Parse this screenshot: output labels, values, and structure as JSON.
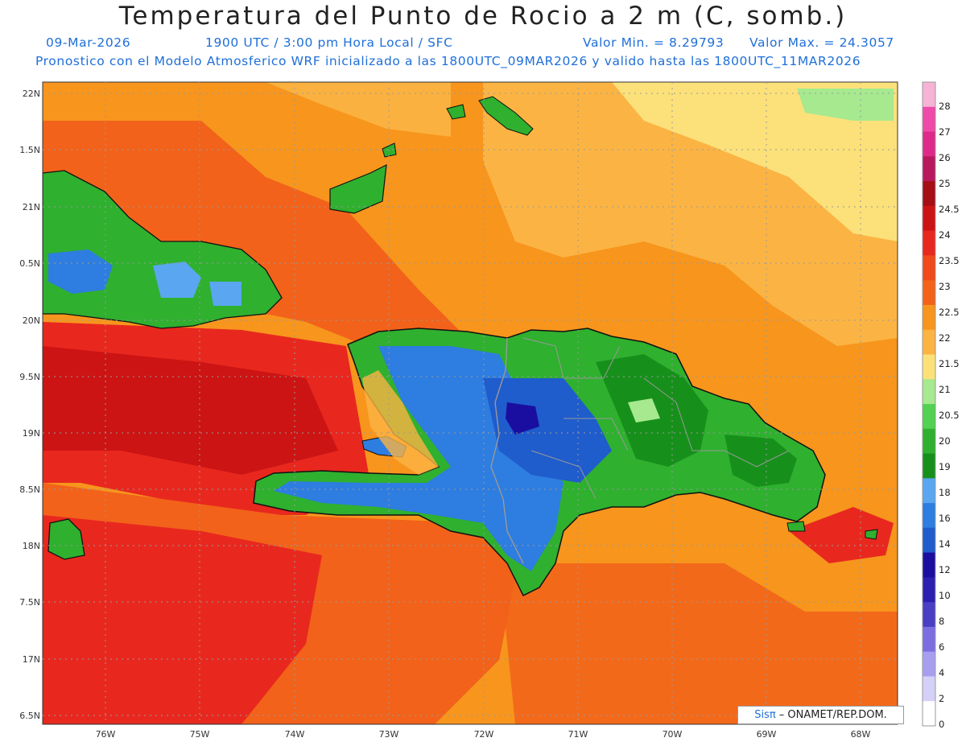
{
  "header": {
    "title": "Temperatura del Punto de Rocio a 2 m (C, somb.)",
    "date": "09-Mar-2026",
    "time": "1900 UTC / 3:00 pm Hora Local / SFC",
    "valmin": "Valor Min. = 8.29793",
    "valmax": "Valor Max. = 24.3057",
    "model_line": "Pronostico con el Modelo Atmosferico WRF inicializado a las 1800UTC_09MAR2026 y valido hasta las  1800UTC_11MAR2026"
  },
  "axes": {
    "lat_labels": [
      "22N",
      "1.5N",
      "21N",
      "0.5N",
      "20N",
      "9.5N",
      "19N",
      "8.5N",
      "18N",
      "7.5N",
      "17N",
      "6.5N"
    ],
    "lon_labels": [
      "76W",
      "75W",
      "74W",
      "73W",
      "72W",
      "71W",
      "70W",
      "69W",
      "68W"
    ]
  },
  "colorbar": {
    "labels": [
      "28",
      "27",
      "26",
      "25",
      "24.5",
      "24",
      "23.5",
      "23",
      "22.5",
      "22",
      "21.5",
      "21",
      "20.5",
      "20",
      "19",
      "18",
      "16",
      "14",
      "12",
      "10",
      "8",
      "6",
      "4",
      "2",
      "0"
    ],
    "colors": [
      "#f6b3d6",
      "#ef4aa9",
      "#dd2a8a",
      "#b8195e",
      "#a50f15",
      "#cc1414",
      "#e8281e",
      "#f04a1c",
      "#f2621a",
      "#f7951d",
      "#fbb444",
      "#fce17a",
      "#a6e98f",
      "#52d152",
      "#2fb02f",
      "#17901b",
      "#5aa6f0",
      "#2e7de0",
      "#1f5ccc",
      "#1a0ea0",
      "#2b1fb0",
      "#4a3ec4",
      "#7c6ee0",
      "#a89ef0",
      "#d4d0f8",
      "#ffffff"
    ]
  },
  "credit": {
    "sis": "Sisπ",
    "rest": " – ONAMET/REP.DOM."
  },
  "colors": {
    "ocean_base": "#f7951d",
    "warm_band": "#e04a1c",
    "hot_band": "#cc1414",
    "land_green": "#2fb02f",
    "land_blue": "#2e7de0",
    "text_blue": "#1f6fd8"
  }
}
